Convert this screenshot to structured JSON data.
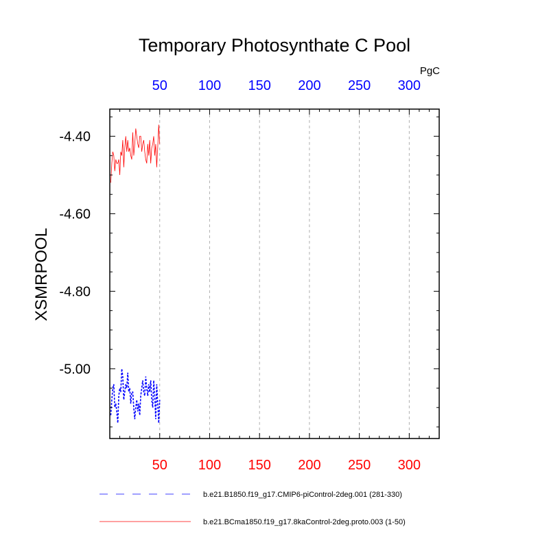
{
  "chart_data": {
    "type": "line",
    "title": "Temporary Photosynthate C Pool",
    "units": "PgC",
    "ylabel": "XSMRPOOL",
    "xlabel": "",
    "xlim": [
      0,
      330
    ],
    "ylim": [
      -5.18,
      -4.33
    ],
    "x_ticks_major": [
      50,
      100,
      150,
      200,
      250,
      300
    ],
    "x_tick_labels": [
      "50",
      "100",
      "150",
      "200",
      "250",
      "300"
    ],
    "y_ticks_major": [
      -4.4,
      -4.6,
      -4.8,
      -5.0
    ],
    "y_tick_labels": [
      "-4.40",
      "-4.60",
      "-4.80",
      "-5.00"
    ],
    "grid": "vertical dashed at major x ticks",
    "top_axis_label_color": "#0000ff",
    "bottom_axis_label_color": "#ff0000",
    "legend_position": "bottom",
    "series": [
      {
        "name": "b.e21.B1850.f19_g17.CMIP6-piControl-2deg.001 (281-330)",
        "color": "#0000ff",
        "style": "dashed",
        "x": [
          1,
          2,
          3,
          4,
          5,
          6,
          7,
          8,
          9,
          10,
          11,
          12,
          13,
          14,
          15,
          16,
          17,
          18,
          19,
          20,
          21,
          22,
          23,
          24,
          25,
          26,
          27,
          28,
          29,
          30,
          31,
          32,
          33,
          34,
          35,
          36,
          37,
          38,
          39,
          40,
          41,
          42,
          43,
          44,
          45,
          46,
          47,
          48,
          49,
          50
        ],
        "values": [
          -5.12,
          -5.08,
          -5.05,
          -5.04,
          -5.1,
          -5.09,
          -5.11,
          -5.14,
          -5.07,
          -5.05,
          -5.06,
          -5.0,
          -5.02,
          -5.08,
          -5.06,
          -5.04,
          -5.05,
          -5.01,
          -5.06,
          -5.05,
          -5.09,
          -5.06,
          -5.06,
          -5.1,
          -5.13,
          -5.1,
          -5.08,
          -5.11,
          -5.09,
          -5.12,
          -5.07,
          -5.05,
          -5.03,
          -5.06,
          -5.07,
          -5.02,
          -5.05,
          -5.07,
          -5.04,
          -5.06,
          -5.03,
          -5.08,
          -5.1,
          -5.03,
          -5.07,
          -5.13,
          -5.04,
          -5.09,
          -5.14,
          -5.08
        ]
      },
      {
        "name": "b.e21.BCma1850.f19_g17.8kaControl-2deg.proto.003 (1-50)",
        "color": "#ff0000",
        "style": "solid",
        "x": [
          1,
          2,
          3,
          4,
          5,
          6,
          7,
          8,
          9,
          10,
          11,
          12,
          13,
          14,
          15,
          16,
          17,
          18,
          19,
          20,
          21,
          22,
          23,
          24,
          25,
          26,
          27,
          28,
          29,
          30,
          31,
          32,
          33,
          34,
          35,
          36,
          37,
          38,
          39,
          40,
          41,
          42,
          43,
          44,
          45,
          46,
          47,
          48,
          49,
          50
        ],
        "values": [
          -4.52,
          -4.47,
          -4.44,
          -4.45,
          -4.49,
          -4.46,
          -4.47,
          -4.47,
          -4.46,
          -4.5,
          -4.44,
          -4.45,
          -4.41,
          -4.48,
          -4.43,
          -4.4,
          -4.44,
          -4.41,
          -4.44,
          -4.43,
          -4.45,
          -4.46,
          -4.39,
          -4.45,
          -4.42,
          -4.38,
          -4.4,
          -4.42,
          -4.43,
          -4.4,
          -4.4,
          -4.44,
          -4.42,
          -4.41,
          -4.44,
          -4.46,
          -4.47,
          -4.42,
          -4.45,
          -4.41,
          -4.47,
          -4.43,
          -4.42,
          -4.4,
          -4.45,
          -4.42,
          -4.48,
          -4.43,
          -4.37,
          -4.42
        ]
      }
    ]
  }
}
